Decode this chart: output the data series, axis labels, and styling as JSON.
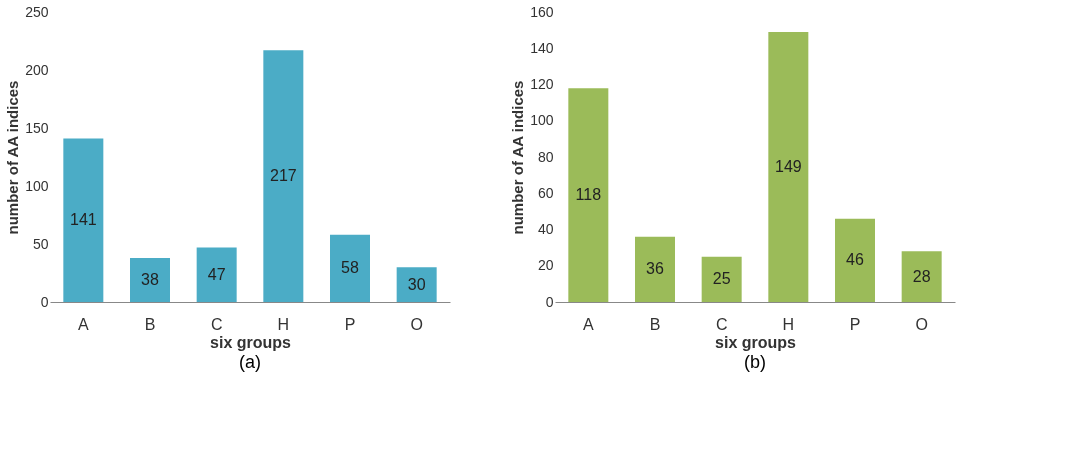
{
  "chart_data": [
    {
      "type": "bar",
      "title": "(a)",
      "xlabel": "six groups",
      "ylabel": "number of AA indices",
      "categories": [
        "A",
        "B",
        "C",
        "H",
        "P",
        "O"
      ],
      "values": [
        141,
        38,
        47,
        217,
        58,
        30
      ],
      "color": "#4bacc6",
      "ylim": [
        0,
        250
      ],
      "yticks": [
        0,
        50,
        100,
        150,
        200,
        250
      ],
      "data_labels": true,
      "grid": false
    },
    {
      "type": "bar",
      "title": "(b)",
      "xlabel": "six groups",
      "ylabel": "number of AA indices",
      "categories": [
        "A",
        "B",
        "C",
        "H",
        "P",
        "O"
      ],
      "values": [
        118,
        36,
        25,
        149,
        46,
        28
      ],
      "color": "#9bbb59",
      "ylim": [
        0,
        160
      ],
      "yticks": [
        0,
        20,
        40,
        60,
        80,
        100,
        120,
        140,
        160
      ],
      "data_labels": true,
      "grid": false
    }
  ]
}
